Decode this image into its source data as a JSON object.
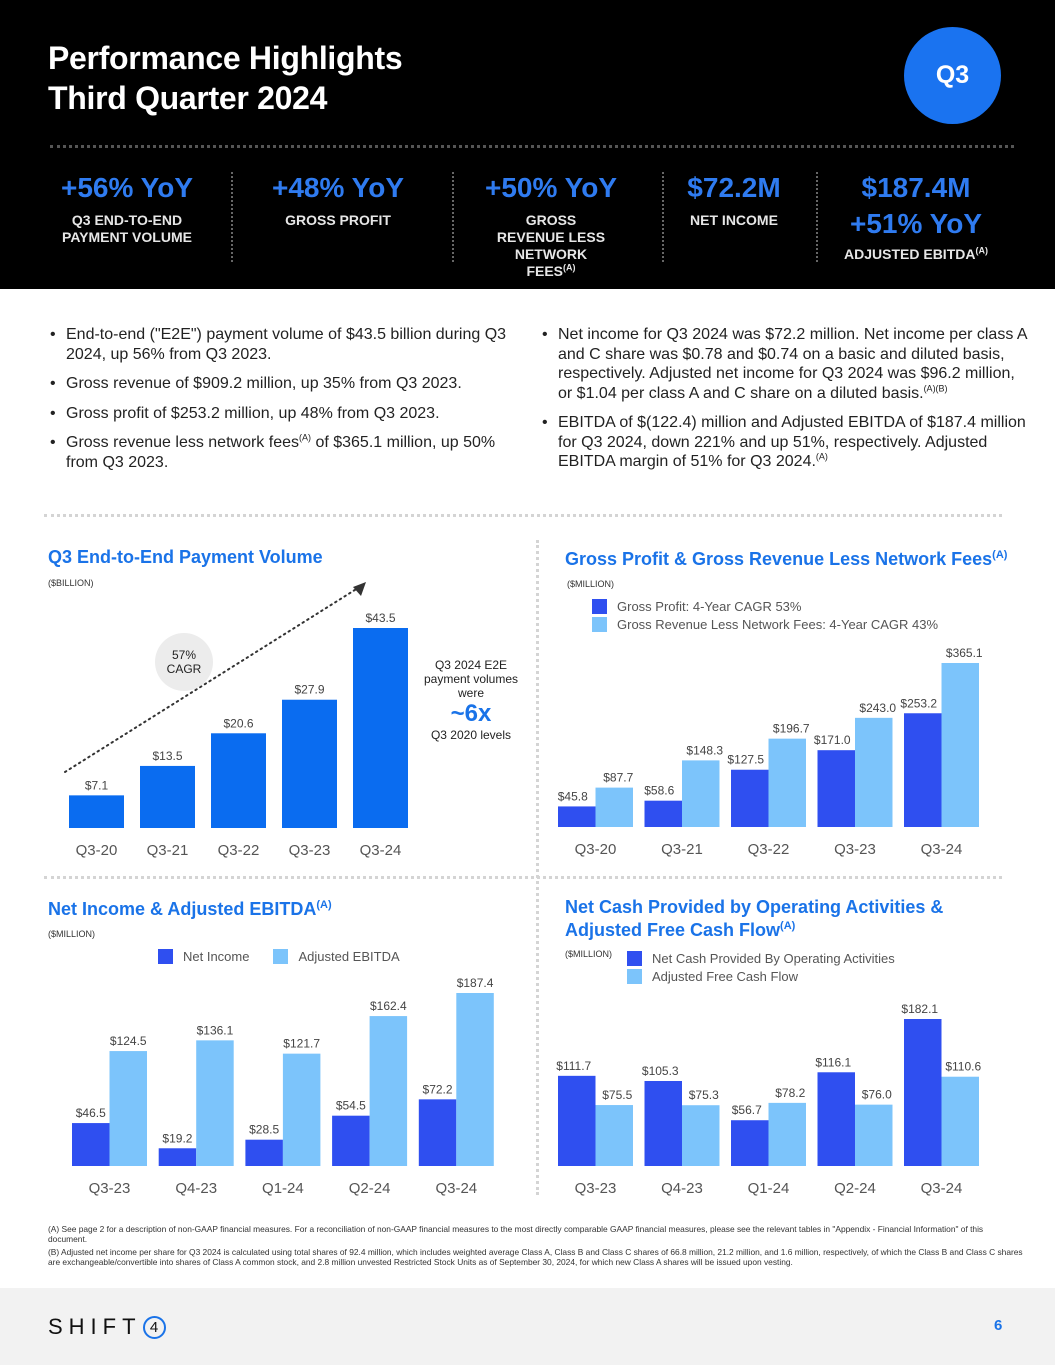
{
  "header": {
    "title_line1": "Performance Highlights",
    "title_line2": "Third Quarter 2024",
    "badge": "Q3"
  },
  "kpis": [
    {
      "value": "+56% YoY",
      "label": "Q3 END-TO-END PAYMENT VOLUME",
      "sup": ""
    },
    {
      "value": "+48% YoY",
      "label": "GROSS PROFIT",
      "sup": ""
    },
    {
      "value": "+50% YoY",
      "label": "GROSS REVENUE LESS NETWORK FEES",
      "sup": "(A)"
    },
    {
      "value": "$72.2M",
      "label": "NET INCOME",
      "sup": ""
    },
    {
      "value": "$187.4M",
      "value2": "+51% YoY",
      "label": "ADJUSTED EBITDA",
      "sup": "(A)"
    }
  ],
  "bullets_left": [
    {
      "text": "End-to-end (\"E2E\") payment volume of $43.5 billion during Q3 2024, up 56% from Q3 2023."
    },
    {
      "text": "Gross revenue of $909.2 million, up 35% from Q3 2023."
    },
    {
      "text": "Gross profit of $253.2 million, up 48% from Q3 2023."
    },
    {
      "text_a": "Gross revenue less network fees",
      "sup": "(A)",
      "text_b": " of $365.1 million, up 50% from Q3 2023."
    }
  ],
  "bullets_right": [
    {
      "text": "Net income for Q3 2024 was $72.2 million. Net income per class A and C share was $0.78 and $0.74 on a basic and diluted basis, respectively. Adjusted net income for Q3 2024 was $96.2 million, or $1.04 per class A and C share on a diluted basis.",
      "sup": "(A)(B)"
    },
    {
      "text": "EBITDA of $(122.4) million and Adjusted EBITDA of $187.4 million for Q3 2024, down 221% and up 51%, respectively. Adjusted EBITDA margin of 51% for Q3 2024.",
      "sup": "(A)"
    }
  ],
  "colors": {
    "primary_bar": "#0a6cf0",
    "dark_bar": "#2f4ff0",
    "light_bar": "#7cc4fb",
    "title_blue": "#1a73e8"
  },
  "e2e_annotation": {
    "cagr_pct": "57%",
    "cagr_label": "CAGR",
    "line1": "Q3 2024 E2E payment volumes were",
    "big": "~6x",
    "line2": "Q3 2020 levels"
  },
  "chart_data": [
    {
      "type": "bar",
      "title": "Q3 End-to-End Payment Volume",
      "unit": "($BILLION)",
      "categories": [
        "Q3-20",
        "Q3-21",
        "Q3-22",
        "Q3-23",
        "Q3-24"
      ],
      "series": [
        {
          "name": "E2E Payment Volume",
          "values": [
            7.1,
            13.5,
            20.6,
            27.9,
            43.5
          ],
          "labels": [
            "$7.1",
            "$13.5",
            "$20.6",
            "$27.9",
            "$43.5"
          ]
        }
      ],
      "ylim": [
        0,
        43.5
      ]
    },
    {
      "type": "bar",
      "title": "Gross Profit & Gross Revenue Less Network Fees",
      "title_sup": "(A)",
      "unit": "($MILLION)",
      "categories": [
        "Q3-20",
        "Q3-21",
        "Q3-22",
        "Q3-23",
        "Q3-24"
      ],
      "series": [
        {
          "name": "Gross Profit: 4-Year CAGR 53%",
          "values": [
            45.8,
            58.6,
            127.5,
            171.0,
            253.2
          ],
          "labels": [
            "$45.8",
            "$58.6",
            "$127.5",
            "$171.0",
            "$253.2"
          ]
        },
        {
          "name": "Gross Revenue Less Network Fees: 4-Year CAGR 43%",
          "values": [
            87.7,
            148.3,
            196.7,
            243.0,
            365.1
          ],
          "labels": [
            "$87.7",
            "$148.3",
            "$196.7",
            "$243.0",
            "$365.1"
          ]
        }
      ],
      "ylim": [
        0,
        365.1
      ]
    },
    {
      "type": "bar",
      "title": "Net Income & Adjusted EBITDA",
      "title_sup": "(A)",
      "unit": "($MILLION)",
      "categories": [
        "Q3-23",
        "Q4-23",
        "Q1-24",
        "Q2-24",
        "Q3-24"
      ],
      "series": [
        {
          "name": "Net Income",
          "values": [
            46.5,
            19.2,
            28.5,
            54.5,
            72.2
          ],
          "labels": [
            "$46.5",
            "$19.2",
            "$28.5",
            "$54.5",
            "$72.2"
          ]
        },
        {
          "name": "Adjusted EBITDA",
          "values": [
            124.5,
            136.1,
            121.7,
            162.4,
            187.4
          ],
          "labels": [
            "$124.5",
            "$136.1",
            "$121.7",
            "$162.4",
            "$187.4"
          ]
        }
      ],
      "ylim": [
        0,
        187.4
      ]
    },
    {
      "type": "bar",
      "title_line1": "Net Cash Provided by Operating Activities &",
      "title_line2": "Adjusted Free Cash Flow",
      "title_sup": "(A)",
      "unit": "($MILLION)",
      "categories": [
        "Q3-23",
        "Q4-23",
        "Q1-24",
        "Q2-24",
        "Q3-24"
      ],
      "series": [
        {
          "name": "Net Cash Provided By Operating Activities",
          "values": [
            111.7,
            105.3,
            56.7,
            116.1,
            182.1
          ],
          "labels": [
            "$111.7",
            "$105.3",
            "$56.7",
            "$116.1",
            "$182.1"
          ]
        },
        {
          "name": "Adjusted Free Cash Flow",
          "values": [
            75.5,
            75.3,
            78.2,
            76.0,
            110.6
          ],
          "labels": [
            "$75.5",
            "$75.3",
            "$78.2",
            "$76.0",
            "$110.6"
          ]
        }
      ],
      "ylim": [
        0,
        182.1
      ]
    }
  ],
  "footnotes": {
    "a": "(A) See page 2 for a description of non-GAAP financial measures. For a reconciliation of non-GAAP financial measures to the most directly comparable GAAP financial measures, please see the relevant tables in \"Appendix - Financial Information\" of this document.",
    "b": "(B) Adjusted net income per share for Q3 2024 is calculated using total shares of 92.4 million, which includes weighted average Class A, Class B and Class C shares of 66.8 million, 21.2 million, and 1.6 million, respectively, of which the Class B and Class C shares are exchangeable/convertible into shares of Class A common stock, and 2.8 million unvested Restricted Stock Units as of September 30, 2024, for which new Class A shares will be issued upon vesting."
  },
  "footer": {
    "logo_text": "SHIFT",
    "logo_mark": "4",
    "page_number": "6"
  }
}
